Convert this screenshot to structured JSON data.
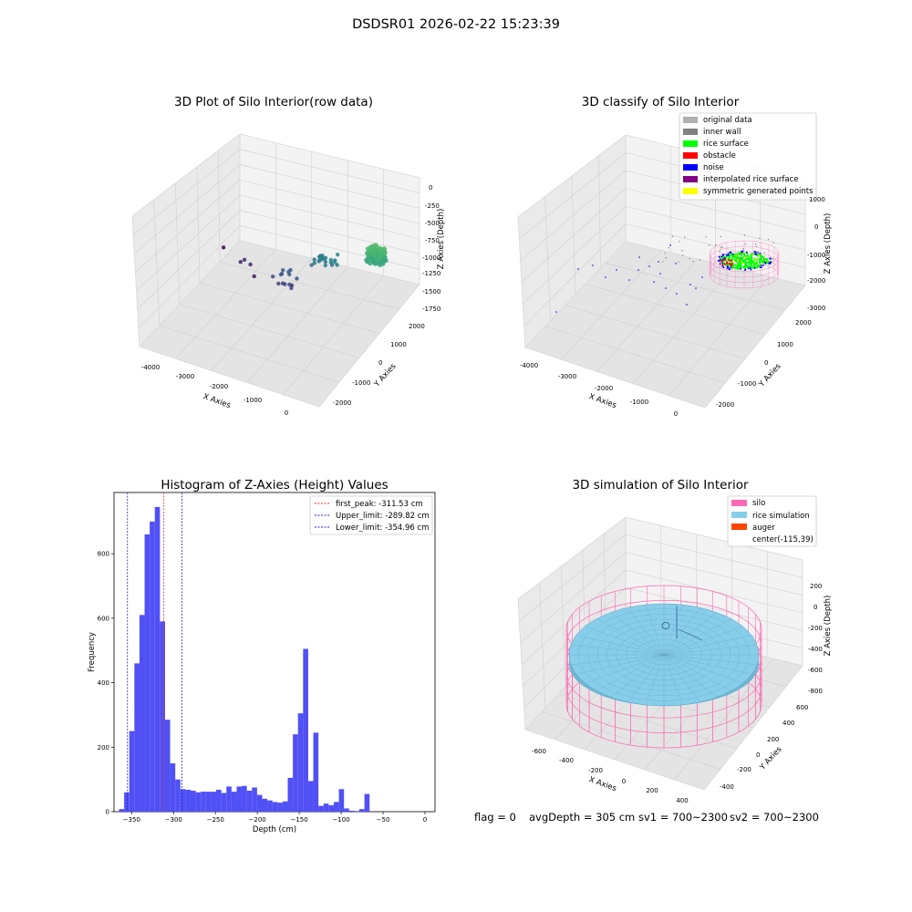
{
  "suptitle": "DSDSR01 2026-02-22 15:23:39",
  "footer": {
    "flag": "flag = 0",
    "avg_depth": "avgDepth = 305 cm",
    "sv1": "sv1 = 700~2300",
    "sv2": "sv2 = 700~2300"
  },
  "colors": {
    "histogram_bar": "#5050f5",
    "peak_line": "#e03030",
    "limit_line": "#2020c0",
    "silo_wire": "#ff69b4",
    "rice_sim": "#87ceeb",
    "pane": "#f2f2f2"
  },
  "chart_data": [
    {
      "type": "scatter3d",
      "title": "3D Plot of Silo Interior(row data)",
      "xlabel": "X Axies",
      "ylabel": "Y Axies",
      "zlabel": "Z Axies (Depth)",
      "x_ticks": [
        "-4000",
        "-3000",
        "-2000",
        "-1000",
        "0"
      ],
      "y_ticks": [
        "-2000",
        "-1000",
        "0",
        "1000",
        "2000"
      ],
      "z_ticks": [
        "0",
        "-250",
        "-500",
        "-750",
        "-1000",
        "-1250",
        "-1500",
        "-1750"
      ],
      "colormap": "viridis",
      "clusters": [
        {
          "x": -4100,
          "y": 1700,
          "z": -1750,
          "n": 1
        },
        {
          "x": -3500,
          "y": 1200,
          "z": -1650,
          "n": 4
        },
        {
          "x": -2300,
          "y": 800,
          "z": -1400,
          "n": 14
        },
        {
          "x": -1500,
          "y": 1200,
          "z": -1050,
          "n": 22
        },
        {
          "x": -200,
          "y": 1200,
          "z": -650,
          "n": 90
        }
      ]
    },
    {
      "type": "scatter3d",
      "title": "3D classify of Silo Interior",
      "xlabel": "X Axies",
      "ylabel": "Y Axies",
      "zlabel": "Z Axies (Depth)",
      "x_ticks": [
        "-4000",
        "-3000",
        "-2000",
        "-1000",
        "0"
      ],
      "y_ticks": [
        "-2000",
        "-1000",
        "0",
        "1000",
        "2000"
      ],
      "z_ticks": [
        "1000",
        "0",
        "-1000",
        "-2000",
        "-3000"
      ],
      "legend": [
        {
          "label": "original data",
          "color": "#b0b0b0"
        },
        {
          "label": "inner wall",
          "color": "#808080"
        },
        {
          "label": "rice surface",
          "color": "#00ff00"
        },
        {
          "label": "obstacle",
          "color": "#ff0000"
        },
        {
          "label": "noise",
          "color": "#0000ff"
        },
        {
          "label": "interpolated rice surface",
          "color": "#800080"
        },
        {
          "label": "symmetric generated points",
          "color": "#ffff00"
        }
      ],
      "legend_loc": "upper right"
    },
    {
      "type": "bar",
      "title": "Histogram of Z-Axies (Height) Values",
      "xlabel": "Depth (cm)",
      "ylabel": "Frequency",
      "xlim": [
        -371,
        12
      ],
      "ylim": [
        0,
        990
      ],
      "x_ticks": [
        -350,
        -300,
        -250,
        -200,
        -150,
        -100,
        -50,
        0
      ],
      "y_ticks": [
        0,
        200,
        400,
        600,
        800
      ],
      "bin_start": -365,
      "bin_width": 6.1,
      "values": [
        8,
        60,
        250,
        460,
        610,
        860,
        900,
        945,
        590,
        285,
        150,
        100,
        70,
        68,
        65,
        60,
        62,
        62,
        62,
        68,
        58,
        78,
        62,
        78,
        80,
        65,
        75,
        52,
        40,
        35,
        30,
        28,
        32,
        105,
        240,
        305,
        505,
        95,
        245,
        18,
        25,
        20,
        30,
        70,
        10,
        3,
        2,
        8,
        55
      ],
      "lines": [
        {
          "label": "first_peak: -311.53 cm",
          "x": -311.53,
          "color": "#e03030"
        },
        {
          "label": "Upper_limit: -289.82 cm",
          "x": -289.82,
          "color": "#2020c0"
        },
        {
          "label": "Lower_limit: -354.96 cm",
          "x": -354.96,
          "color": "#2020c0"
        }
      ],
      "legend_loc": "upper right"
    },
    {
      "type": "surface3d",
      "title": "3D simulation of Silo Interior",
      "xlabel": "X Axies",
      "ylabel": "Y Axies",
      "zlabel": "Z Axies (Depth)",
      "x_ticks": [
        "-600",
        "-400",
        "-200",
        "0",
        "200",
        "400"
      ],
      "y_ticks": [
        "-400",
        "-200",
        "0",
        "200",
        "400",
        "600"
      ],
      "z_ticks": [
        "200",
        "0",
        "-200",
        "-400",
        "-600",
        "-800"
      ],
      "legend": [
        {
          "label": "silo",
          "color": "#ff69b4"
        },
        {
          "label": "rice simulation",
          "color": "#87ceeb"
        },
        {
          "label": "auger",
          "color": "#ff4500"
        },
        {
          "label": "center(-115,39)",
          "color": ""
        }
      ],
      "legend_loc": "upper right"
    }
  ]
}
